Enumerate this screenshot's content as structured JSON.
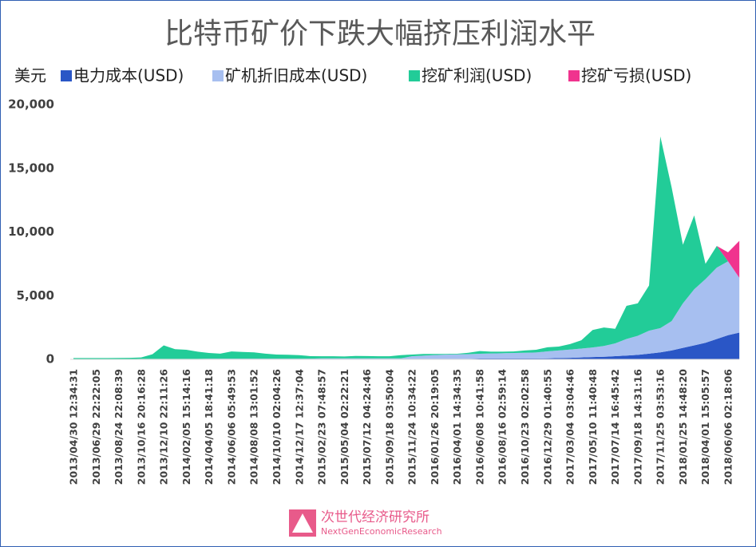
{
  "chart_data": {
    "type": "stacked_area",
    "title": "比特币矿价下跌大幅挤压利润水平",
    "legend_unit": "美元",
    "categories": [
      "2013/04/30 12:34:31",
      null,
      "2013/06/29 22:22:05",
      null,
      "2013/08/24 22:08:39",
      null,
      "2013/10/16 20:16:28",
      null,
      "2013/12/10 22:11:26",
      null,
      "2014/02/05 15:14:16",
      null,
      "2014/04/05 18:41:18",
      null,
      "2014/06/06 05:49:53",
      null,
      "2014/08/08 13:01:52",
      null,
      "2014/10/10 02:04:26",
      null,
      "2014/12/17 12:37:04",
      null,
      "2015/02/23 07:48:57",
      null,
      "2015/05/04 02:22:21",
      null,
      "2015/07/12 04:24:46",
      null,
      "2015/09/18 03:50:04",
      null,
      "2015/11/24 10:34:22",
      null,
      "2016/01/26 20:19:05",
      null,
      "2016/04/01 14:34:35",
      null,
      "2016/06/08 10:41:58",
      null,
      "2016/08/16 02:59:14",
      null,
      "2016/10/23 02:02:58",
      null,
      "2016/12/29 01:40:55",
      null,
      "2017/03/04 03:04:46",
      null,
      "2017/05/10 11:40:48",
      null,
      "2017/07/14 16:45:42",
      null,
      "2017/09/18 14:31:16",
      null,
      "2017/11/25 03:53:16",
      null,
      "2018/01/25 14:48:20",
      null,
      "2018/04/01 15:05:57",
      null,
      "2018/06/06 02:18:06",
      null
    ],
    "series": [
      {
        "name": "电力成本(USD)",
        "color": "#2a56c6",
        "values": [
          5,
          5,
          5,
          5,
          5,
          5,
          10,
          10,
          10,
          10,
          10,
          10,
          15,
          15,
          15,
          15,
          15,
          15,
          15,
          15,
          15,
          15,
          20,
          20,
          20,
          20,
          20,
          20,
          20,
          20,
          40,
          40,
          40,
          40,
          40,
          40,
          60,
          60,
          60,
          60,
          60,
          60,
          80,
          100,
          120,
          150,
          180,
          200,
          250,
          300,
          350,
          450,
          550,
          700,
          900,
          1100,
          1300,
          1600,
          1900,
          2100
        ]
      },
      {
        "name": "矿机折旧成本(USD)",
        "color": "#a7bff0",
        "values": [
          15,
          15,
          15,
          15,
          15,
          15,
          30,
          30,
          30,
          30,
          30,
          30,
          40,
          40,
          40,
          40,
          40,
          40,
          40,
          40,
          40,
          40,
          60,
          60,
          60,
          60,
          60,
          60,
          60,
          60,
          200,
          250,
          300,
          330,
          350,
          370,
          380,
          400,
          420,
          440,
          460,
          480,
          550,
          600,
          650,
          700,
          750,
          850,
          1000,
          1300,
          1500,
          1800,
          1900,
          2300,
          3500,
          4400,
          5000,
          5600,
          5800,
          4300
        ]
      },
      {
        "name": "挖矿利润(USD)",
        "color": "#22cc98",
        "values": [
          80,
          80,
          80,
          80,
          90,
          100,
          110,
          360,
          1060,
          760,
          710,
          560,
          445,
          395,
          565,
          525,
          495,
          395,
          325,
          305,
          275,
          195,
          160,
          160,
          150,
          190,
          180,
          160,
          160,
          250,
          140,
          130,
          80,
          50,
          50,
          110,
          210,
          140,
          120,
          120,
          180,
          210,
          320,
          300,
          430,
          650,
          1370,
          1450,
          1150,
          2600,
          2550,
          3550,
          15050,
          10500,
          4600,
          5800,
          1200,
          1700,
          0,
          0
        ]
      },
      {
        "name": "挖矿亏损(USD)",
        "color": "#f0338e",
        "values": [
          0,
          0,
          0,
          0,
          0,
          0,
          0,
          0,
          0,
          0,
          0,
          0,
          0,
          0,
          0,
          0,
          0,
          0,
          0,
          0,
          0,
          0,
          0,
          0,
          0,
          0,
          0,
          0,
          0,
          0,
          0,
          0,
          0,
          0,
          0,
          0,
          0,
          0,
          0,
          0,
          0,
          0,
          0,
          0,
          0,
          0,
          0,
          0,
          0,
          0,
          0,
          0,
          0,
          0,
          0,
          0,
          0,
          0,
          700,
          2900
        ]
      }
    ],
    "ylim": [
      0,
      20000
    ],
    "yticks": [
      0,
      {
        "value": 5000,
        "label": "5,000"
      },
      {
        "value": 10000,
        "label": "10,000"
      },
      {
        "value": 15000,
        "label": "15,000"
      },
      {
        "value": 20000,
        "label": "20,000"
      }
    ]
  },
  "watermark": {
    "name": "次世代经济研究所",
    "subtitle": "NextGenEconomicResearch"
  }
}
